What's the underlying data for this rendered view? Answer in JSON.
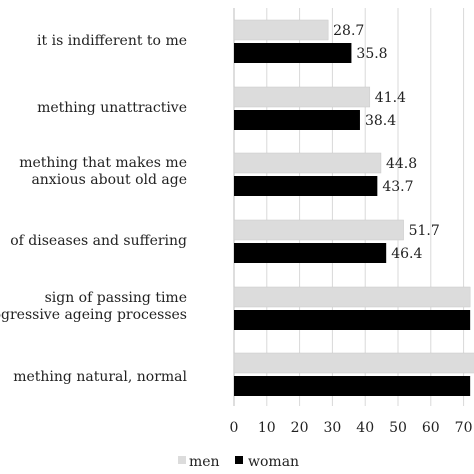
{
  "chart_data": {
    "type": "bar",
    "orientation": "horizontal",
    "categories": [
      [
        "it is indifferent to me"
      ],
      [
        "mething unattractive"
      ],
      [
        "mething that makes me",
        "anxious about old age"
      ],
      [
        "of diseases and suffering"
      ],
      [
        "sign of passing time",
        "ogressive ageing processes"
      ],
      [
        "mething natural, normal"
      ]
    ],
    "series": [
      {
        "name": "men",
        "color": "#dcdcdc",
        "values": [
          28.7,
          41.4,
          44.8,
          51.7,
          72.0,
          75.0
        ],
        "labels": [
          "28.7",
          "41.4",
          "44.8",
          "51.7",
          "",
          ""
        ]
      },
      {
        "name": "woman",
        "color": "#000000",
        "values": [
          35.8,
          38.4,
          43.7,
          46.4,
          72.0,
          72.0
        ],
        "labels": [
          "35.8",
          "38.4",
          "43.7",
          "46.4",
          "",
          ""
        ]
      }
    ],
    "x_ticks": [
      "0",
      "10",
      "20",
      "30",
      "40",
      "50",
      "60",
      "70"
    ],
    "xlim": [
      0,
      72
    ],
    "grid": true,
    "legend_position": "bottom"
  }
}
